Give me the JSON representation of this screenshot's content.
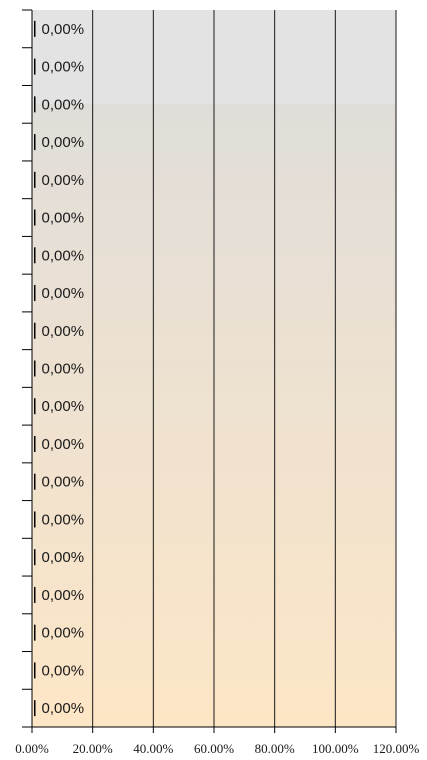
{
  "chart_data": {
    "type": "bar",
    "orientation": "horizontal",
    "categories": [
      "",
      "",
      "",
      "",
      "",
      "",
      "",
      "",
      "",
      "",
      "",
      "",
      "",
      "",
      "",
      "",
      "",
      "",
      ""
    ],
    "values": [
      0,
      0,
      0,
      0,
      0,
      0,
      0,
      0,
      0,
      0,
      0,
      0,
      0,
      0,
      0,
      0,
      0,
      0,
      0
    ],
    "data_labels": [
      "0,00%",
      "0,00%",
      "0,00%",
      "0,00%",
      "0,00%",
      "0,00%",
      "0,00%",
      "0,00%",
      "0,00%",
      "0,00%",
      "0,00%",
      "0,00%",
      "0,00%",
      "0,00%",
      "0,00%",
      "0,00%",
      "0,00%",
      "0,00%",
      "0,00%"
    ],
    "xlim": [
      0,
      120
    ],
    "x_ticks": [
      0,
      20,
      40,
      60,
      80,
      100,
      120
    ],
    "x_tick_labels": [
      "0.00%",
      "20.00%",
      "40.00%",
      "60.00%",
      "80.00%",
      "100.00%",
      "120.00%"
    ],
    "grid": "vertical",
    "colors": {
      "background_top": "#e3e3e3",
      "background_bottom": "#fde6c6",
      "grid_line": "#1a1a1a",
      "bar": "#000000"
    }
  }
}
